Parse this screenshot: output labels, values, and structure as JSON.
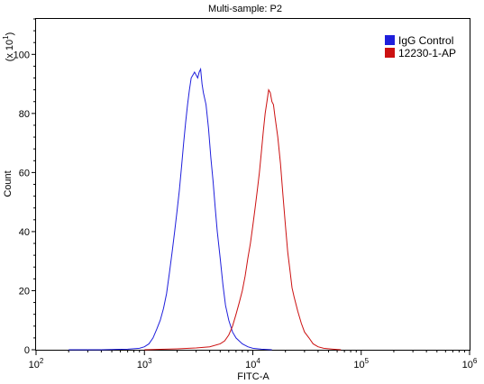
{
  "chart_data": {
    "type": "line",
    "title": "Multi-sample: P2",
    "xlabel": "FITC-A",
    "ylabel": "Count",
    "y_multiplier_label": "(x 10",
    "y_multiplier_exp": "1",
    "x_scale": "log",
    "xlim": [
      100,
      1000000
    ],
    "ylim": [
      0,
      112
    ],
    "x_ticks": [
      {
        "base": "10",
        "exp": "2",
        "value": 100
      },
      {
        "base": "10",
        "exp": "3",
        "value": 1000
      },
      {
        "base": "10",
        "exp": "4",
        "value": 10000
      },
      {
        "base": "10",
        "exp": "5",
        "value": 100000
      },
      {
        "base": "10",
        "exp": "6",
        "value": 1000000
      }
    ],
    "y_ticks": [
      "0",
      "20",
      "40",
      "60",
      "80",
      "100"
    ],
    "grid": false,
    "legend_position": "top-right",
    "series": [
      {
        "name": "IgG Control",
        "color": "#1f1fdc",
        "points": [
          [
            200,
            0
          ],
          [
            400,
            0
          ],
          [
            700,
            0.2
          ],
          [
            900,
            0.5
          ],
          [
            1000,
            1
          ],
          [
            1100,
            2
          ],
          [
            1200,
            4
          ],
          [
            1300,
            7
          ],
          [
            1400,
            10
          ],
          [
            1500,
            14
          ],
          [
            1600,
            19
          ],
          [
            1700,
            26
          ],
          [
            1800,
            33
          ],
          [
            1900,
            40
          ],
          [
            2000,
            47
          ],
          [
            2100,
            54
          ],
          [
            2200,
            62
          ],
          [
            2300,
            70
          ],
          [
            2400,
            77
          ],
          [
            2500,
            83
          ],
          [
            2600,
            88
          ],
          [
            2700,
            92
          ],
          [
            2800,
            93
          ],
          [
            2900,
            94
          ],
          [
            3000,
            93
          ],
          [
            3100,
            92
          ],
          [
            3200,
            94
          ],
          [
            3300,
            95
          ],
          [
            3400,
            90
          ],
          [
            3500,
            87
          ],
          [
            3700,
            83
          ],
          [
            3900,
            75
          ],
          [
            4100,
            65
          ],
          [
            4300,
            57
          ],
          [
            4500,
            48
          ],
          [
            4700,
            40
          ],
          [
            5000,
            31
          ],
          [
            5300,
            22
          ],
          [
            5600,
            15
          ],
          [
            6000,
            10
          ],
          [
            6500,
            6
          ],
          [
            7000,
            4
          ],
          [
            8000,
            2
          ],
          [
            9000,
            1
          ],
          [
            10000,
            0.5
          ],
          [
            12000,
            0.2
          ],
          [
            15000,
            0
          ]
        ]
      },
      {
        "name": "12230-1-AP",
        "color": "#cc1111",
        "points": [
          [
            1000,
            0
          ],
          [
            2000,
            0.3
          ],
          [
            3000,
            0.6
          ],
          [
            4000,
            1
          ],
          [
            5000,
            2
          ],
          [
            5500,
            3
          ],
          [
            6000,
            5
          ],
          [
            6500,
            8
          ],
          [
            7000,
            12
          ],
          [
            7500,
            16
          ],
          [
            8000,
            20
          ],
          [
            8500,
            25
          ],
          [
            9000,
            31
          ],
          [
            9500,
            36
          ],
          [
            10000,
            42
          ],
          [
            10500,
            48
          ],
          [
            11000,
            54
          ],
          [
            11500,
            60
          ],
          [
            12000,
            67
          ],
          [
            12500,
            74
          ],
          [
            13000,
            80
          ],
          [
            13500,
            84
          ],
          [
            14000,
            88
          ],
          [
            14500,
            87
          ],
          [
            15000,
            84
          ],
          [
            15500,
            83
          ],
          [
            16000,
            79
          ],
          [
            17000,
            72
          ],
          [
            18000,
            63
          ],
          [
            19000,
            52
          ],
          [
            20000,
            42
          ],
          [
            21000,
            33
          ],
          [
            22000,
            27
          ],
          [
            23000,
            21
          ],
          [
            24000,
            18
          ],
          [
            26000,
            13
          ],
          [
            28000,
            9
          ],
          [
            30000,
            6
          ],
          [
            33000,
            4
          ],
          [
            36000,
            2
          ],
          [
            40000,
            1
          ],
          [
            45000,
            0.5
          ],
          [
            55000,
            0.2
          ],
          [
            65000,
            0
          ]
        ]
      }
    ]
  }
}
